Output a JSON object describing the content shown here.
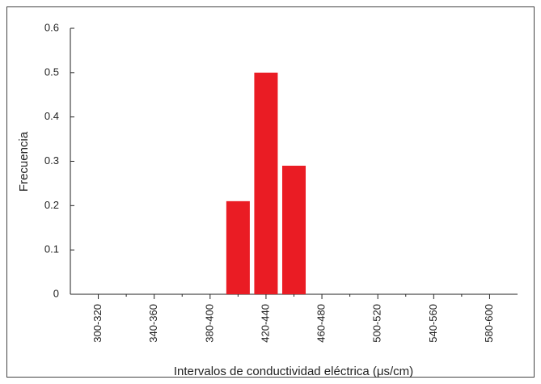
{
  "chart_data": {
    "type": "bar",
    "x_label": "Intervalos de conductividad eléctrica (μs/cm)",
    "y_label": "Frecuencia",
    "categories": [
      "300-320",
      null,
      "340-360",
      null,
      "380-400",
      null,
      "420-440",
      null,
      "460-480",
      null,
      "500-520",
      null,
      "540-560",
      null,
      "580-600"
    ],
    "values": [
      0,
      0,
      0,
      0,
      0,
      0.21,
      0.5,
      0.29,
      0,
      0,
      0,
      0,
      0,
      0,
      0
    ],
    "color": "#ea1c24",
    "ylim": [
      0,
      0.6
    ],
    "yticks": [
      0,
      0.1,
      0.2,
      0.3,
      0.4,
      0.5,
      0.6
    ]
  }
}
